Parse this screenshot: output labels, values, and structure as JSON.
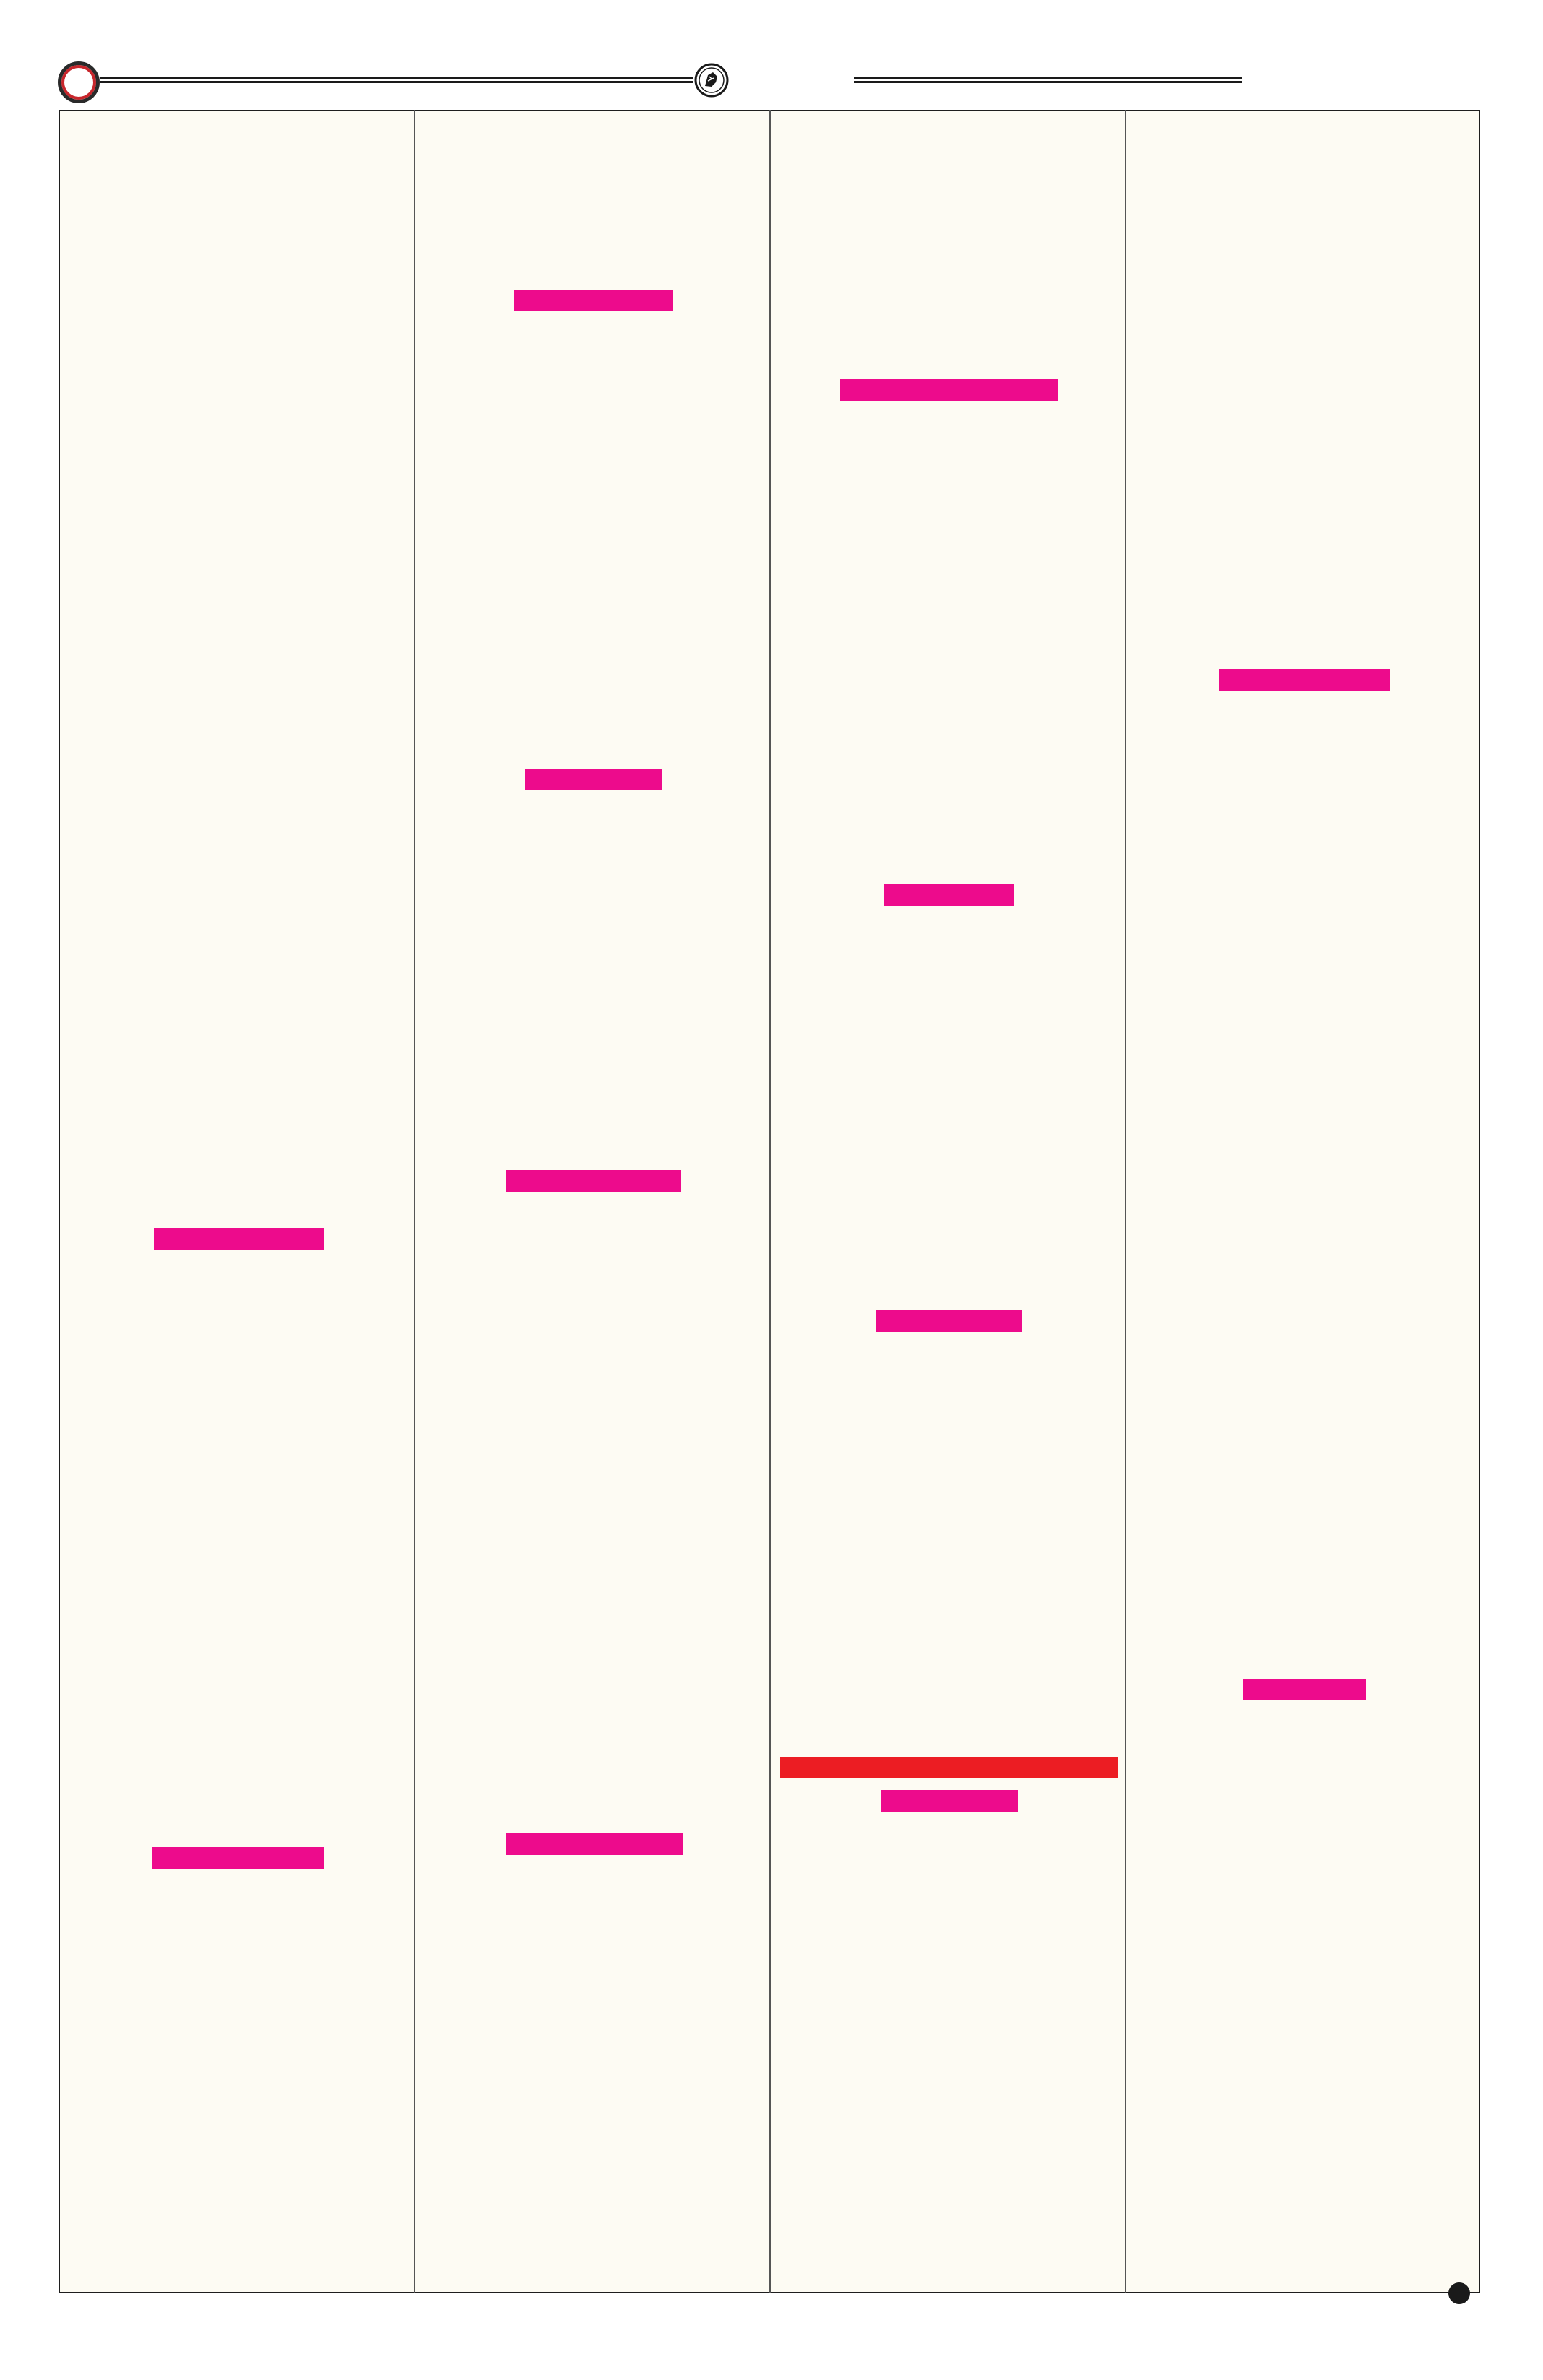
{
  "header": {
    "emblem_icon": "shield-emblem-icon",
    "page_number": ""
  },
  "colors": {
    "page_background": "#fdfbf3",
    "frame_border": "#1e1e1e",
    "redaction_magenta": "#ed0b8c",
    "redaction_red": "#ec1d23",
    "accent_circle": "#c8262c"
  },
  "columns": [
    {
      "name": "column-1",
      "redaction_count": 2
    },
    {
      "name": "column-2",
      "redaction_count": 4
    },
    {
      "name": "column-3",
      "redaction_count": 5
    },
    {
      "name": "column-4",
      "redaction_count": 2
    }
  ],
  "redactions_total": 13
}
